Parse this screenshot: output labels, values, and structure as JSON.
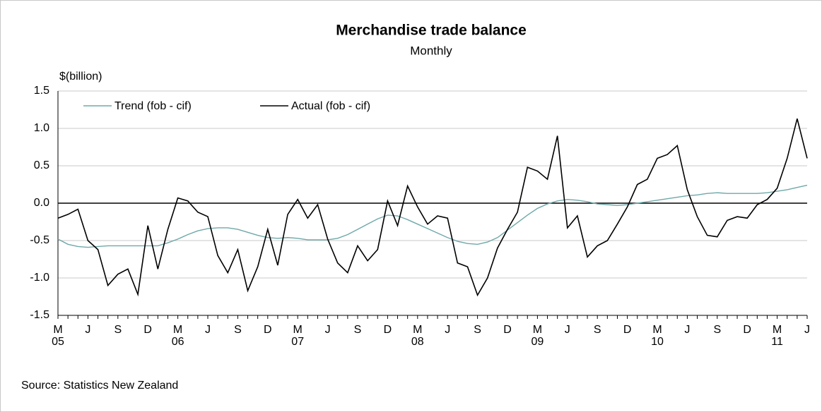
{
  "chart_data": {
    "type": "line",
    "title": "Merchandise trade balance",
    "subtitle": "Monthly",
    "y_axis_label": "$(billion)",
    "source": "Source: Statistics New Zealand",
    "categories": [
      "M",
      null,
      null,
      "J",
      null,
      null,
      "S",
      null,
      null,
      "D",
      null,
      null,
      "M",
      null,
      null,
      "J",
      null,
      null,
      "S",
      null,
      null,
      "D",
      null,
      null,
      "M",
      null,
      null,
      "J",
      null,
      null,
      "S",
      null,
      null,
      "D",
      null,
      null,
      "M",
      null,
      null,
      "J",
      null,
      null,
      "S",
      null,
      null,
      "D",
      null,
      null,
      "M",
      null,
      null,
      "J",
      null,
      null,
      "S",
      null,
      null,
      "D",
      null,
      null,
      "M",
      null,
      null,
      "J",
      null,
      null,
      "S",
      null,
      null,
      "D",
      null,
      null,
      "M",
      null,
      null,
      "J"
    ],
    "years": [
      "05",
      "06",
      "07",
      "08",
      "09",
      "10",
      "11"
    ],
    "series": [
      {
        "name": "Trend (fob - cif)",
        "color": "#6fa8a8",
        "values": [
          -0.48,
          -0.55,
          -0.58,
          -0.59,
          -0.58,
          -0.57,
          -0.57,
          -0.57,
          -0.57,
          -0.57,
          -0.57,
          -0.53,
          -0.48,
          -0.42,
          -0.37,
          -0.34,
          -0.33,
          -0.33,
          -0.35,
          -0.39,
          -0.43,
          -0.46,
          -0.47,
          -0.46,
          -0.47,
          -0.49,
          -0.49,
          -0.49,
          -0.47,
          -0.42,
          -0.35,
          -0.28,
          -0.21,
          -0.16,
          -0.17,
          -0.22,
          -0.28,
          -0.34,
          -0.4,
          -0.46,
          -0.51,
          -0.54,
          -0.55,
          -0.52,
          -0.46,
          -0.36,
          -0.26,
          -0.16,
          -0.07,
          -0.01,
          0.03,
          0.05,
          0.04,
          0.02,
          -0.01,
          -0.02,
          -0.03,
          -0.02,
          0.0,
          0.02,
          0.04,
          0.06,
          0.08,
          0.1,
          0.11,
          0.13,
          0.14,
          0.13,
          0.13,
          0.13,
          0.13,
          0.14,
          0.16,
          0.18,
          0.21,
          0.24
        ]
      },
      {
        "name": "Actual (fob - cif)",
        "color": "#000000",
        "values": [
          -0.2,
          -0.15,
          -0.08,
          -0.5,
          -0.62,
          -1.1,
          -0.95,
          -0.88,
          -1.22,
          -0.3,
          -0.88,
          -0.35,
          0.07,
          0.03,
          -0.12,
          -0.18,
          -0.7,
          -0.93,
          -0.62,
          -1.17,
          -0.85,
          -0.35,
          -0.83,
          -0.15,
          0.05,
          -0.2,
          -0.02,
          -0.48,
          -0.8,
          -0.93,
          -0.57,
          -0.77,
          -0.62,
          0.03,
          -0.3,
          0.23,
          -0.05,
          -0.28,
          -0.17,
          -0.2,
          -0.8,
          -0.85,
          -1.23,
          -1.0,
          -0.6,
          -0.35,
          -0.12,
          0.48,
          0.43,
          0.32,
          0.9,
          -0.33,
          -0.17,
          -0.72,
          -0.57,
          -0.5,
          -0.28,
          -0.05,
          0.25,
          0.32,
          0.6,
          0.65,
          0.77,
          0.18,
          -0.18,
          -0.43,
          -0.45,
          -0.23,
          -0.18,
          -0.2,
          -0.02,
          0.05,
          0.2,
          0.6,
          1.13,
          0.6
        ]
      }
    ],
    "ylim": [
      -1.5,
      1.5
    ],
    "yticks": [
      1.5,
      {
        "value": 1,
        "label": "1.0"
      },
      0.5,
      {
        "value": 0,
        "label": "0.0"
      },
      -0.5,
      {
        "value": -1,
        "label": "-1.0"
      },
      -1.5
    ],
    "grid": true,
    "legend": "top-left"
  }
}
